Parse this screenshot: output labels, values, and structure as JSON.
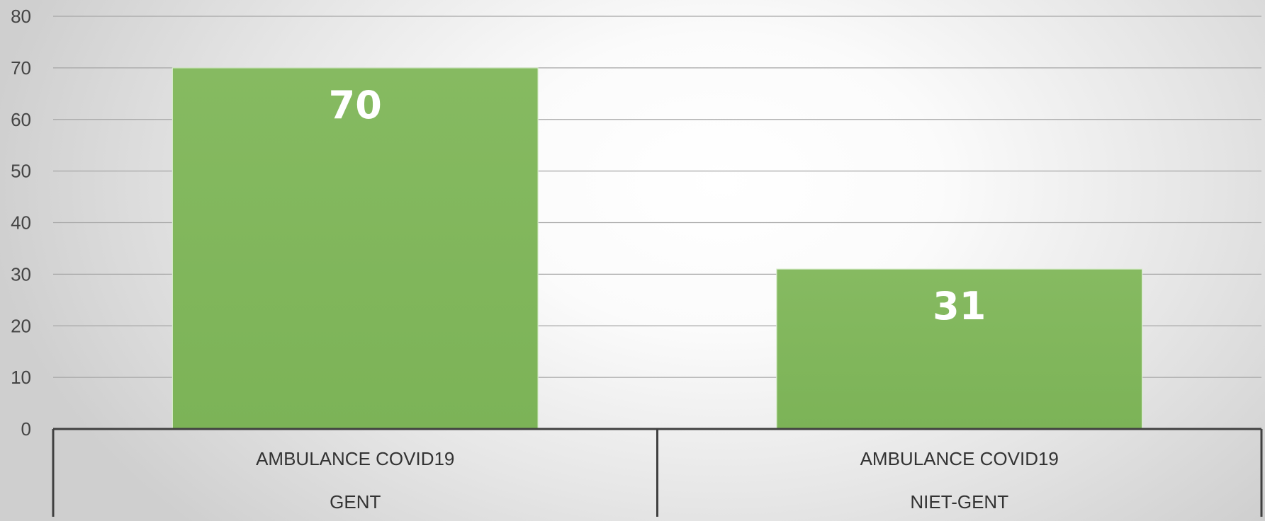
{
  "chart_data": {
    "type": "bar",
    "title": "",
    "xlabel": "",
    "ylabel": "",
    "ylim": [
      0,
      80
    ],
    "y_ticks": [
      0,
      10,
      20,
      30,
      40,
      50,
      60,
      70,
      80
    ],
    "grid": true,
    "legend": "none",
    "bar_color": "#80b75c",
    "categories": [
      {
        "line1": "AMBULANCE COVID19",
        "line2": "GENT"
      },
      {
        "line1": "AMBULANCE COVID19",
        "line2": "NIET-GENT"
      }
    ],
    "values": [
      70,
      31
    ],
    "data_labels": [
      "70",
      "31"
    ]
  }
}
